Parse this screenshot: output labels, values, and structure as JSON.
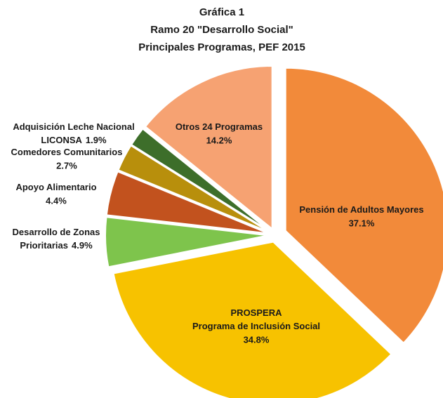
{
  "chart_data": {
    "type": "pie",
    "title": [
      "Gráfica 1",
      "Ramo 20 \"Desarrollo Social\"",
      "Principales Programas, PEF 2015"
    ],
    "categories": [
      [
        "Pensión de Adultos Mayores"
      ],
      [
        "PROSPERA",
        "Programa de Inclusión Social"
      ],
      [
        "Desarrollo de Zonas",
        "Prioritarias"
      ],
      [
        "Apoyo Alimentario"
      ],
      [
        "Comedores Comunitarios"
      ],
      [
        "Adquisición Leche Nacional",
        "LICONSA"
      ],
      [
        "Otros 24 Programas"
      ]
    ],
    "values": [
      37.1,
      34.8,
      4.9,
      4.4,
      2.7,
      1.9,
      14.2
    ],
    "value_labels": [
      "37.1%",
      "34.8%",
      "4.9%",
      "4.4%",
      "2.7%",
      "1.9%",
      "14.2%"
    ],
    "colors": [
      "#f28a3a",
      "#f7c200",
      "#7ec44c",
      "#c2521e",
      "#b88f0c",
      "#3d6e2a",
      "#f6a272"
    ]
  }
}
